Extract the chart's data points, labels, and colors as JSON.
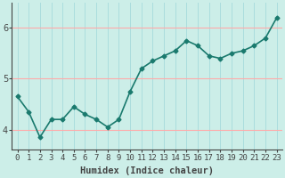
{
  "x": [
    0,
    1,
    2,
    3,
    4,
    5,
    6,
    7,
    8,
    9,
    10,
    11,
    12,
    13,
    14,
    15,
    16,
    17,
    18,
    19,
    20,
    21,
    22,
    23
  ],
  "y": [
    4.65,
    4.35,
    3.85,
    4.2,
    4.2,
    4.45,
    4.3,
    4.2,
    4.05,
    4.2,
    4.75,
    5.2,
    5.35,
    5.45,
    5.55,
    5.75,
    5.65,
    5.45,
    5.4,
    5.5,
    5.55,
    5.65,
    5.8,
    6.2
  ],
  "line_color": "#1a7a6e",
  "marker": "D",
  "marker_size": 2.5,
  "bg_color": "#cceee8",
  "grid_color_x": "#aadddd",
  "grid_color_y": "#ffaaaa",
  "axis_color": "#444444",
  "xlabel": "Humidex (Indice chaleur)",
  "ylim": [
    3.6,
    6.5
  ],
  "xlim": [
    -0.5,
    23.5
  ],
  "yticks": [
    4,
    5,
    6
  ],
  "xticks": [
    0,
    1,
    2,
    3,
    4,
    5,
    6,
    7,
    8,
    9,
    10,
    11,
    12,
    13,
    14,
    15,
    16,
    17,
    18,
    19,
    20,
    21,
    22,
    23
  ],
  "xlabel_fontsize": 7.5,
  "tick_fontsize": 7,
  "line_width": 1.2
}
